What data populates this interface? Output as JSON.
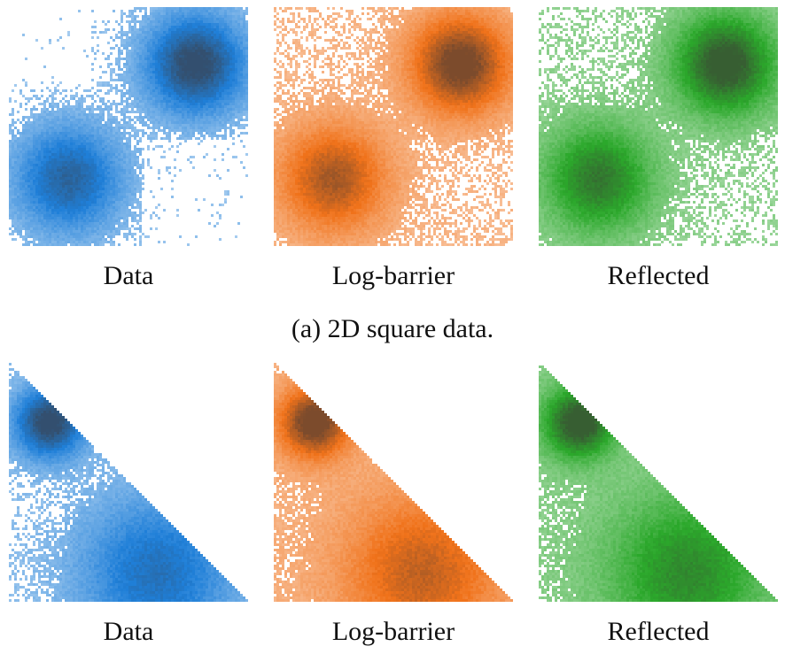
{
  "figure": {
    "rows": [
      {
        "shape": "square",
        "caption": "(a) 2D square data.",
        "panels": [
          {
            "label": "Data",
            "color": "#1f7fd8"
          },
          {
            "label": "Log-barrier",
            "color": "#f0721a"
          },
          {
            "label": "Reflected",
            "color": "#2ba82b"
          }
        ]
      },
      {
        "shape": "triangle",
        "caption": "",
        "panels": [
          {
            "label": "Data",
            "color": "#1f7fd8"
          },
          {
            "label": "Log-barrier",
            "color": "#f0721a"
          },
          {
            "label": "Reflected",
            "color": "#2ba82b"
          }
        ]
      }
    ]
  }
}
